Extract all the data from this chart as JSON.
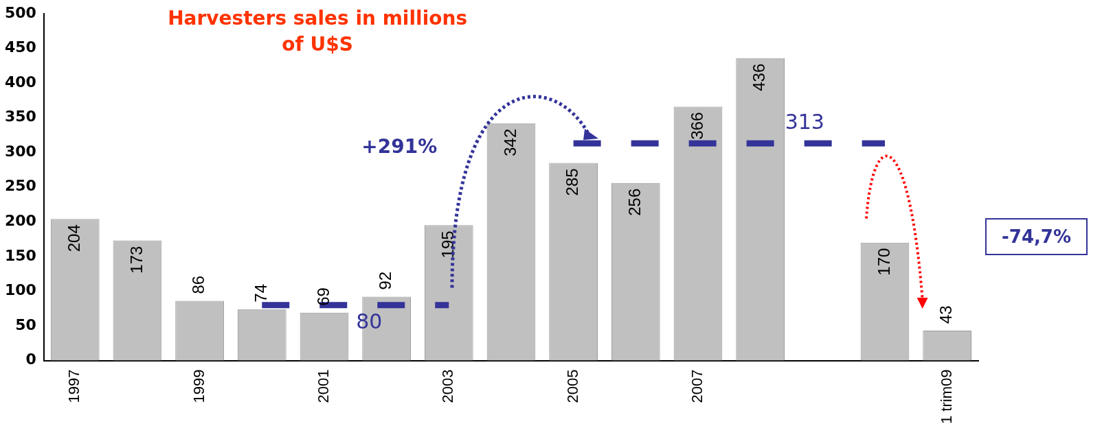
{
  "chart_data": {
    "type": "bar",
    "title": "Harvesters sales in millions of U$S",
    "categories": [
      "1997",
      null,
      "1999",
      null,
      "2001",
      null,
      "2003",
      null,
      "2005",
      null,
      "2007",
      null,
      null,
      null,
      "1 trim09"
    ],
    "series": [
      {
        "color": "#c0c0c0",
        "values": [
          204,
          173,
          86,
          74,
          69,
          92,
          195,
          342,
          285,
          256,
          366,
          436,
          null,
          170,
          43
        ],
        "value_labels": [
          "204",
          "173",
          "86",
          "74",
          "69",
          "92",
          "195",
          "342",
          "285",
          "256",
          "366",
          "436",
          null,
          "170",
          "43"
        ]
      },
      {
        "type": "line",
        "name": "80",
        "color": "#333399",
        "line_style": "dashed",
        "values": [
          null,
          null,
          null,
          80,
          80,
          80,
          80,
          null,
          null,
          null,
          null,
          null,
          null,
          null,
          null
        ]
      },
      {
        "type": "line",
        "name": "313",
        "color": "#333399",
        "line_style": "dashed",
        "values": [
          null,
          null,
          null,
          null,
          null,
          null,
          null,
          null,
          313,
          313,
          313,
          313,
          313,
          313,
          null
        ]
      }
    ],
    "ylim": [
      0,
      500
    ],
    "yticks": [
      0,
      50,
      100,
      150,
      200,
      250,
      300,
      350,
      400,
      450,
      500
    ],
    "grid": false,
    "legend": false,
    "annotations": [
      "+291%",
      "-74,7%"
    ]
  }
}
